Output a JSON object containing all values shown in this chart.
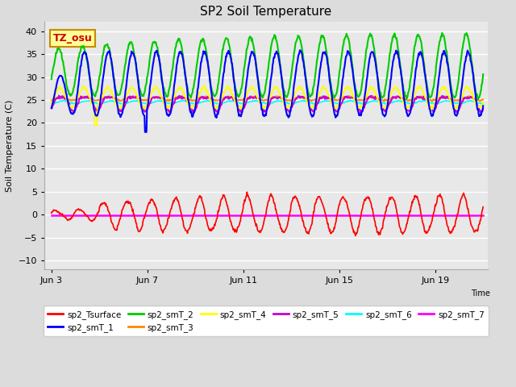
{
  "title": "SP2 Soil Temperature",
  "ylabel": "Soil Temperature (C)",
  "xlabel": "Time",
  "ylim": [
    -12,
    42
  ],
  "yticks": [
    -10,
    -5,
    0,
    5,
    10,
    15,
    20,
    25,
    30,
    35,
    40
  ],
  "xtick_labels": [
    "Jun 3",
    "Jun 7",
    "Jun 11",
    "Jun 15",
    "Jun 19"
  ],
  "xtick_positions": [
    0,
    4,
    8,
    12,
    16
  ],
  "bg_color": "#dcdcdc",
  "plot_bg": "#e8e8e8",
  "grid_color": "#ffffff",
  "colors": {
    "sp2_Tsurface": "#ff0000",
    "sp2_smT_1": "#0000ff",
    "sp2_smT_2": "#00cc00",
    "sp2_smT_3": "#ff8800",
    "sp2_smT_4": "#ffff00",
    "sp2_smT_5": "#cc00cc",
    "sp2_smT_6": "#00ffff",
    "sp2_smT_7": "#ff00ff"
  },
  "legend_order": [
    "sp2_Tsurface",
    "sp2_smT_1",
    "sp2_smT_2",
    "sp2_smT_3",
    "sp2_smT_4",
    "sp2_smT_5",
    "sp2_smT_6",
    "sp2_smT_7"
  ]
}
